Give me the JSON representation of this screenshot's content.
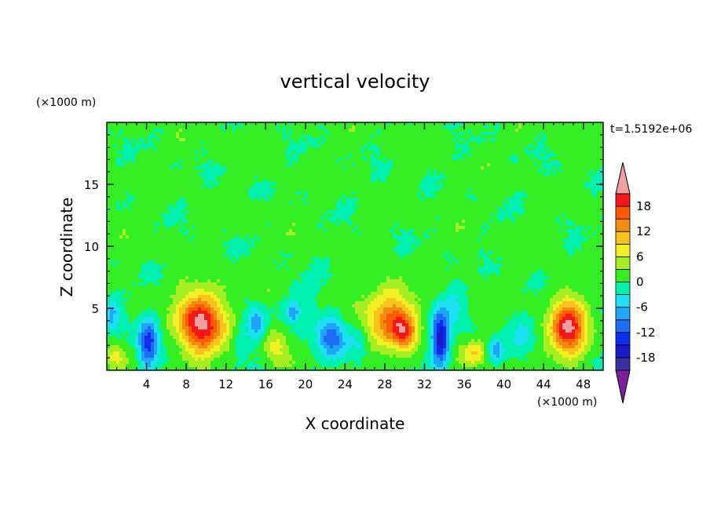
{
  "chart_data": {
    "type": "heatmap",
    "title": "vertical velocity",
    "xlabel": "X coordinate",
    "ylabel": "Z coordinate",
    "x_unit": "(×1000 m)",
    "y_unit": "(×1000 m)",
    "time_label": "t=1.5192e+06",
    "xlim": [
      0,
      50
    ],
    "ylim": [
      0,
      20
    ],
    "x_ticks": [
      4,
      8,
      12,
      16,
      20,
      24,
      28,
      32,
      36,
      40,
      44,
      48
    ],
    "y_ticks": [
      5,
      10,
      15
    ],
    "colorbar": {
      "levels": [
        -21,
        -18,
        -15,
        -12,
        -9,
        -6,
        -3,
        0,
        3,
        6,
        9,
        12,
        15,
        18,
        21
      ],
      "colors": [
        "#7a1f9e",
        "#3a2fa0",
        "#1a1acc",
        "#0f2ef0",
        "#1f6df5",
        "#1fa6f8",
        "#1fe1f5",
        "#00f0b0",
        "#33ee22",
        "#a6ee22",
        "#f0f022",
        "#f8c21c",
        "#f08c10",
        "#ff5a00",
        "#f01818",
        "#f0a0a0"
      ],
      "tick_labels": [
        "-18",
        "-12",
        "-6",
        "0",
        "6",
        "12",
        "18"
      ],
      "tick_values": [
        -18,
        -12,
        -6,
        0,
        6,
        12,
        18
      ]
    },
    "features": [
      {
        "x": 9.5,
        "z": 3.8,
        "amp": 22,
        "sx": 2.2,
        "sz": 2.4
      },
      {
        "x": 28.5,
        "z": 4.2,
        "amp": 14,
        "sx": 2.4,
        "sz": 2.3
      },
      {
        "x": 30.0,
        "z": 3.0,
        "amp": 11,
        "sx": 1.2,
        "sz": 1.3
      },
      {
        "x": 46.5,
        "z": 3.4,
        "amp": 20,
        "sx": 1.8,
        "sz": 2.2
      },
      {
        "x": 37.0,
        "z": 1.3,
        "amp": 7,
        "sx": 1.2,
        "sz": 1.0
      },
      {
        "x": 17.0,
        "z": 1.8,
        "amp": 6,
        "sx": 1.2,
        "sz": 1.3
      },
      {
        "x": 0.8,
        "z": 1.2,
        "amp": 6,
        "sx": 1.0,
        "sz": 0.9
      },
      {
        "x": 4.2,
        "z": 2.2,
        "amp": -16,
        "sx": 1.0,
        "sz": 2.0
      },
      {
        "x": 22.5,
        "z": 2.6,
        "amp": -12,
        "sx": 1.5,
        "sz": 1.6
      },
      {
        "x": 33.6,
        "z": 2.6,
        "amp": -18,
        "sx": 0.9,
        "sz": 2.2
      },
      {
        "x": 39.2,
        "z": 1.6,
        "amp": -9,
        "sx": 0.8,
        "sz": 1.0
      },
      {
        "x": 15.0,
        "z": 3.8,
        "amp": -8,
        "sx": 0.8,
        "sz": 1.5
      },
      {
        "x": 18.8,
        "z": 4.6,
        "amp": -8,
        "sx": 0.6,
        "sz": 0.8
      },
      {
        "x": 20.2,
        "z": 5.5,
        "amp": -3.5,
        "sx": 1.4,
        "sz": 1.5
      },
      {
        "x": 0.5,
        "z": 4.5,
        "amp": -7,
        "sx": 0.8,
        "sz": 1.4
      },
      {
        "x": 13.5,
        "z": 2.5,
        "amp": -4,
        "sx": 1.0,
        "sz": 1.8
      },
      {
        "x": 25.5,
        "z": 2.0,
        "amp": -4,
        "sx": 1.0,
        "sz": 1.5
      },
      {
        "x": 42.0,
        "z": 3.0,
        "amp": -4,
        "sx": 1.2,
        "sz": 2.0
      },
      {
        "x": 35.0,
        "z": 5.0,
        "amp": -3.5,
        "sx": 1.2,
        "sz": 1.8
      }
    ]
  }
}
